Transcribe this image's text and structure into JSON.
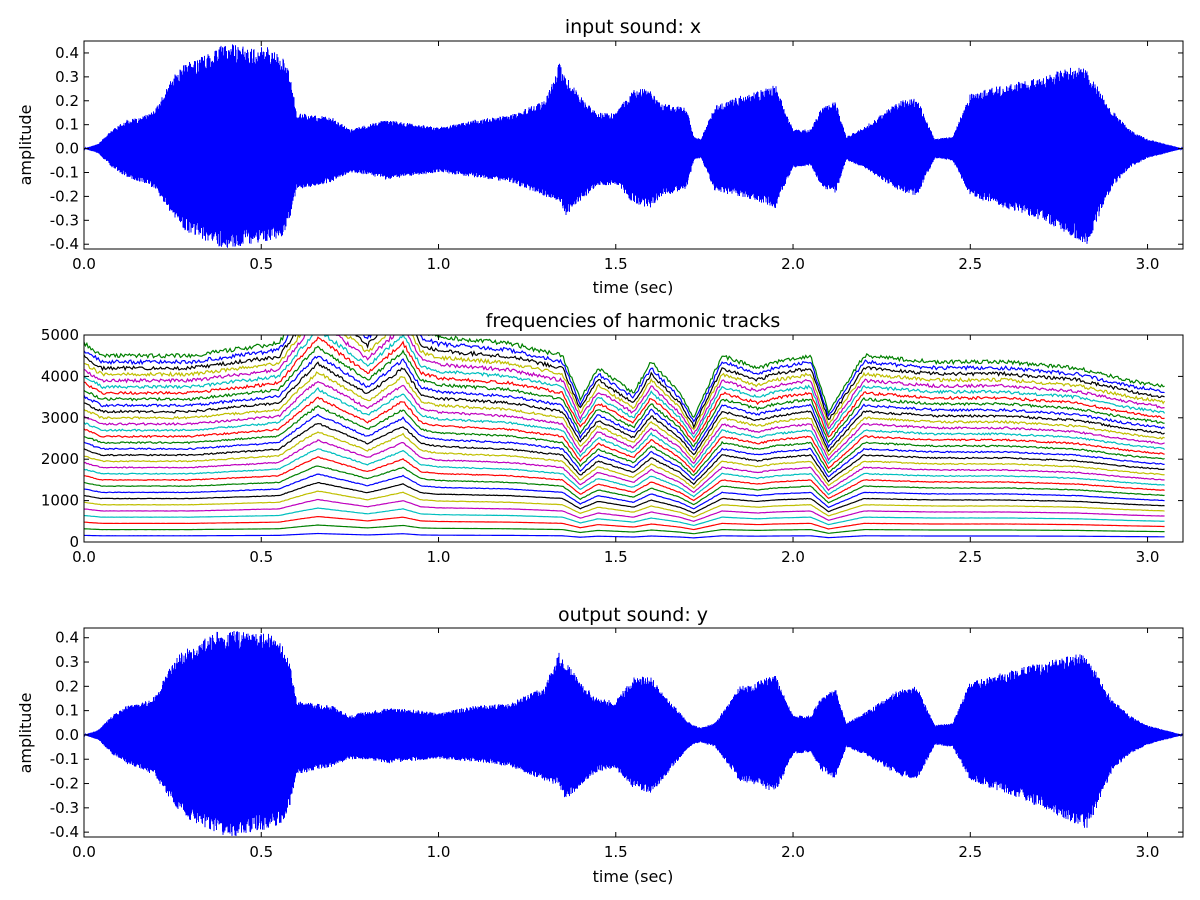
{
  "chart_data": [
    {
      "type": "line",
      "title": "input sound: x",
      "xlabel": "time (sec)",
      "ylabel": "amplitude",
      "xlim": [
        0,
        3.1
      ],
      "ylim": [
        -0.42,
        0.45
      ],
      "xticks": [
        "0.0",
        "0.5",
        "1.0",
        "1.5",
        "2.0",
        "2.5",
        "3.0"
      ],
      "yticks": [
        "-0.4",
        "-0.3",
        "-0.2",
        "-0.1",
        "0.0",
        "0.1",
        "0.2",
        "0.3",
        "0.4"
      ],
      "color": "#0000ff",
      "envelope": {
        "t": [
          0,
          0.04,
          0.08,
          0.12,
          0.16,
          0.2,
          0.25,
          0.28,
          0.32,
          0.38,
          0.42,
          0.47,
          0.52,
          0.56,
          0.58,
          0.6,
          0.65,
          0.7,
          0.75,
          0.8,
          0.85,
          0.9,
          1.0,
          1.1,
          1.2,
          1.3,
          1.34,
          1.36,
          1.4,
          1.45,
          1.5,
          1.55,
          1.6,
          1.63,
          1.7,
          1.72,
          1.74,
          1.78,
          1.85,
          1.9,
          1.95,
          2.0,
          2.05,
          2.08,
          2.12,
          2.15,
          2.2,
          2.3,
          2.35,
          2.4,
          2.45,
          2.5,
          2.6,
          2.7,
          2.8,
          2.83,
          2.9,
          2.95,
          3.0,
          3.05,
          3.1
        ],
        "top": [
          0.0,
          0.02,
          0.08,
          0.12,
          0.13,
          0.16,
          0.3,
          0.35,
          0.38,
          0.43,
          0.44,
          0.42,
          0.43,
          0.38,
          0.32,
          0.15,
          0.14,
          0.13,
          0.08,
          0.1,
          0.12,
          0.11,
          0.09,
          0.12,
          0.14,
          0.2,
          0.36,
          0.3,
          0.22,
          0.15,
          0.15,
          0.25,
          0.25,
          0.19,
          0.17,
          0.05,
          0.04,
          0.18,
          0.22,
          0.24,
          0.27,
          0.08,
          0.08,
          0.17,
          0.2,
          0.05,
          0.09,
          0.2,
          0.21,
          0.04,
          0.05,
          0.23,
          0.27,
          0.3,
          0.35,
          0.33,
          0.16,
          0.08,
          0.04,
          0.02,
          0.0
        ],
        "bottom": [
          0.0,
          -0.02,
          -0.08,
          -0.12,
          -0.14,
          -0.17,
          -0.28,
          -0.34,
          -0.37,
          -0.41,
          -0.42,
          -0.4,
          -0.39,
          -0.37,
          -0.3,
          -0.17,
          -0.16,
          -0.14,
          -0.1,
          -0.11,
          -0.13,
          -0.12,
          -0.1,
          -0.12,
          -0.14,
          -0.2,
          -0.22,
          -0.28,
          -0.22,
          -0.16,
          -0.15,
          -0.23,
          -0.25,
          -0.2,
          -0.17,
          -0.05,
          -0.04,
          -0.18,
          -0.2,
          -0.22,
          -0.25,
          -0.08,
          -0.07,
          -0.16,
          -0.19,
          -0.05,
          -0.08,
          -0.18,
          -0.2,
          -0.04,
          -0.05,
          -0.2,
          -0.25,
          -0.3,
          -0.38,
          -0.4,
          -0.16,
          -0.08,
          -0.04,
          -0.02,
          0.0
        ]
      }
    },
    {
      "type": "line",
      "title": "frequencies of harmonic tracks",
      "xlim": [
        0,
        3.1
      ],
      "ylim": [
        0,
        5000
      ],
      "xticks": [
        "0.0",
        "0.5",
        "1.0",
        "1.5",
        "2.0",
        "2.5",
        "3.0"
      ],
      "yticks": [
        "0",
        "1000",
        "2000",
        "3000",
        "4000",
        "5000"
      ],
      "harmonics": 30,
      "colors": [
        "#0000ff",
        "#008000",
        "#ff0000",
        "#00bfbf",
        "#bf00bf",
        "#bfbf00",
        "#000000"
      ],
      "f0": {
        "t": [
          0.0,
          0.05,
          0.3,
          0.55,
          0.62,
          0.66,
          0.72,
          0.8,
          0.85,
          0.9,
          0.95,
          1.0,
          1.2,
          1.35,
          1.4,
          1.45,
          1.55,
          1.6,
          1.68,
          1.72,
          1.8,
          1.9,
          1.95,
          2.05,
          2.1,
          2.2,
          2.4,
          2.6,
          2.8,
          2.95,
          3.05
        ],
        "hz": [
          160,
          150,
          150,
          160,
          190,
          205,
          190,
          170,
          185,
          200,
          170,
          165,
          160,
          150,
          115,
          140,
          120,
          145,
          120,
          100,
          150,
          140,
          145,
          150,
          105,
          150,
          145,
          145,
          140,
          130,
          125
        ]
      }
    },
    {
      "type": "line",
      "title": "output sound: y",
      "xlabel": "time (sec)",
      "ylabel": "amplitude",
      "xlim": [
        0,
        3.1
      ],
      "ylim": [
        -0.42,
        0.44
      ],
      "xticks": [
        "0.0",
        "0.5",
        "1.0",
        "1.5",
        "2.0",
        "2.5",
        "3.0"
      ],
      "yticks": [
        "-0.4",
        "-0.3",
        "-0.2",
        "-0.1",
        "0.0",
        "0.1",
        "0.2",
        "0.3",
        "0.4"
      ],
      "color": "#0000ff",
      "envelope": {
        "t": [
          0,
          0.04,
          0.08,
          0.12,
          0.16,
          0.2,
          0.25,
          0.28,
          0.32,
          0.38,
          0.42,
          0.47,
          0.52,
          0.56,
          0.58,
          0.6,
          0.65,
          0.7,
          0.75,
          0.8,
          0.85,
          0.9,
          1.0,
          1.1,
          1.2,
          1.3,
          1.34,
          1.36,
          1.4,
          1.45,
          1.5,
          1.55,
          1.6,
          1.63,
          1.7,
          1.72,
          1.74,
          1.78,
          1.85,
          1.9,
          1.95,
          2.0,
          2.05,
          2.08,
          2.12,
          2.15,
          2.2,
          2.3,
          2.35,
          2.4,
          2.45,
          2.5,
          2.6,
          2.7,
          2.8,
          2.83,
          2.9,
          2.95,
          3.0,
          3.05,
          3.1
        ],
        "top": [
          0.0,
          0.02,
          0.08,
          0.12,
          0.13,
          0.16,
          0.3,
          0.35,
          0.38,
          0.43,
          0.43,
          0.42,
          0.42,
          0.37,
          0.3,
          0.14,
          0.13,
          0.12,
          0.08,
          0.1,
          0.11,
          0.11,
          0.09,
          0.12,
          0.13,
          0.2,
          0.35,
          0.3,
          0.22,
          0.15,
          0.14,
          0.24,
          0.24,
          0.18,
          0.06,
          0.04,
          0.03,
          0.05,
          0.2,
          0.22,
          0.25,
          0.08,
          0.08,
          0.16,
          0.19,
          0.05,
          0.09,
          0.19,
          0.2,
          0.04,
          0.05,
          0.22,
          0.26,
          0.3,
          0.34,
          0.32,
          0.15,
          0.08,
          0.04,
          0.02,
          0.0
        ],
        "bottom": [
          0.0,
          -0.02,
          -0.08,
          -0.12,
          -0.14,
          -0.17,
          -0.28,
          -0.34,
          -0.37,
          -0.41,
          -0.42,
          -0.4,
          -0.39,
          -0.36,
          -0.3,
          -0.16,
          -0.15,
          -0.13,
          -0.1,
          -0.1,
          -0.12,
          -0.11,
          -0.1,
          -0.11,
          -0.13,
          -0.19,
          -0.21,
          -0.27,
          -0.21,
          -0.15,
          -0.14,
          -0.22,
          -0.24,
          -0.19,
          -0.06,
          -0.04,
          -0.03,
          -0.05,
          -0.19,
          -0.21,
          -0.24,
          -0.08,
          -0.07,
          -0.15,
          -0.18,
          -0.05,
          -0.08,
          -0.17,
          -0.19,
          -0.04,
          -0.05,
          -0.19,
          -0.24,
          -0.3,
          -0.37,
          -0.39,
          -0.15,
          -0.08,
          -0.04,
          -0.02,
          0.0
        ]
      }
    }
  ]
}
